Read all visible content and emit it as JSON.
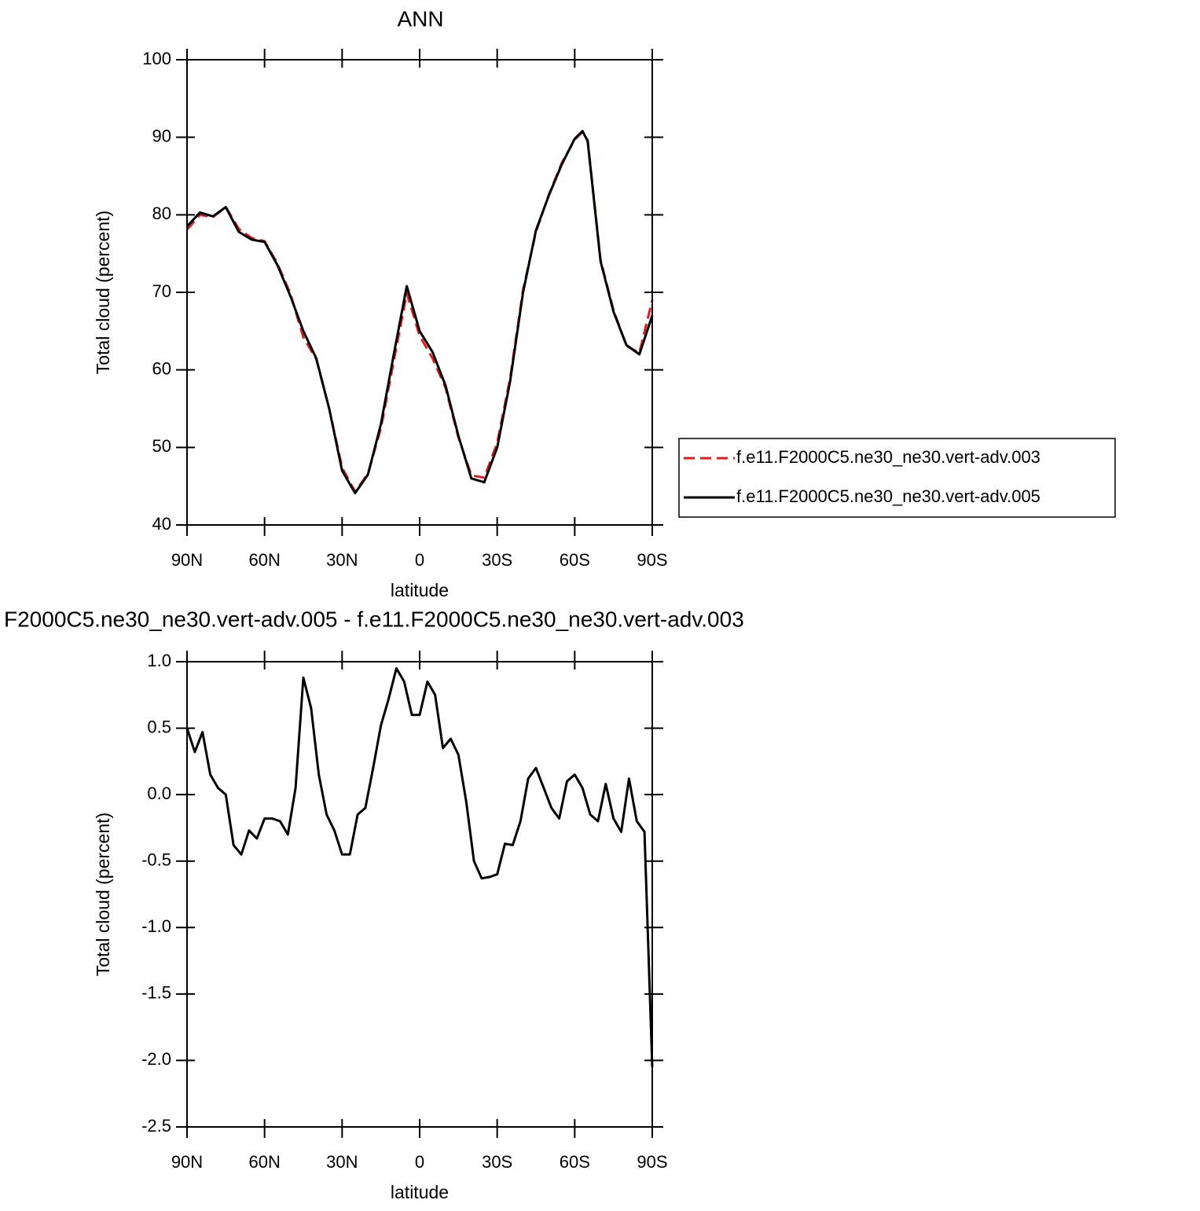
{
  "chart_data": [
    {
      "type": "line",
      "title": "ANN",
      "xlabel": "latitude",
      "ylabel": "Total cloud (percent)",
      "x": [
        90,
        85,
        80,
        75,
        70,
        65,
        60,
        55,
        50,
        45,
        40,
        35,
        30,
        25,
        20,
        15,
        10,
        5,
        0,
        -5,
        -10,
        -15,
        -20,
        -25,
        -30,
        -35,
        -40,
        -45,
        -50,
        -55,
        -60,
        -63,
        -65,
        -70,
        -75,
        -80,
        -85,
        -90
      ],
      "series": [
        {
          "name": "f.e11.F2000C5.ne30_ne30.vert-adv.003",
          "color": "#e41a1c",
          "line_style": "dashed",
          "values": [
            78.1,
            80.0,
            79.7,
            81.0,
            78.2,
            77.0,
            76.6,
            73.7,
            69.8,
            64.2,
            61.4,
            55.0,
            47.4,
            44.3,
            46.6,
            52.5,
            61.2,
            69.9,
            64.4,
            61.5,
            57.7,
            51.3,
            46.4,
            46.1,
            50.6,
            58.9,
            70.3,
            77.8,
            82.6,
            86.7,
            89.7,
            90.7,
            89.6,
            74.2,
            67.7,
            63.1,
            62.2,
            69.0
          ]
        },
        {
          "name": "f.e11.F2000C5.ne30_ne30.vert-adv.005",
          "color": "#000000",
          "line_style": "solid",
          "values": [
            78.5,
            80.3,
            79.8,
            81.0,
            77.8,
            76.8,
            76.5,
            73.5,
            69.5,
            65.0,
            61.5,
            55.0,
            47.0,
            44.1,
            46.5,
            53.0,
            62.0,
            70.8,
            65.0,
            62.3,
            58.0,
            51.5,
            46.0,
            45.5,
            50.0,
            58.5,
            70.0,
            78.0,
            82.5,
            86.5,
            89.8,
            90.8,
            89.5,
            74.0,
            67.5,
            63.2,
            62.0,
            67.0
          ]
        }
      ],
      "xlim": [
        90,
        -90
      ],
      "xticks": [
        {
          "value": 90,
          "label": "90N"
        },
        {
          "value": 60,
          "label": "60N"
        },
        {
          "value": 30,
          "label": "30N"
        },
        0,
        {
          "value": -30,
          "label": "30S"
        },
        {
          "value": -60,
          "label": "60S"
        },
        {
          "value": -90,
          "label": "90S"
        }
      ],
      "ylim": [
        40,
        100
      ],
      "yticks": [
        40,
        50,
        60,
        70,
        80,
        90,
        100
      ],
      "legend": "right"
    },
    {
      "type": "line",
      "title": "F2000C5.ne30_ne30.vert-adv.005 - f.e11.F2000C5.ne30_ne30.vert-adv.003",
      "xlabel": "latitude",
      "ylabel": "Total cloud (percent)",
      "x": [
        90,
        87,
        84,
        81,
        78,
        75,
        72,
        69,
        66,
        63,
        60,
        57,
        54,
        51,
        48,
        45,
        42,
        39,
        36,
        33,
        30,
        27,
        24,
        21,
        18,
        15,
        12,
        9,
        6,
        3,
        0,
        -3,
        -6,
        -9,
        -12,
        -15,
        -18,
        -21,
        -24,
        -27,
        -30,
        -33,
        -36,
        -39,
        -42,
        -45,
        -48,
        -51,
        -54,
        -57,
        -60,
        -63,
        -66,
        -69,
        -72,
        -75,
        -78,
        -81,
        -84,
        -87,
        -90
      ],
      "series": [
        {
          "name": null,
          "color": "#000000",
          "line_style": "solid",
          "values": [
            0.5,
            0.32,
            0.47,
            0.15,
            0.05,
            0.0,
            -0.38,
            -0.45,
            -0.27,
            -0.33,
            -0.18,
            -0.18,
            -0.2,
            -0.3,
            0.05,
            0.88,
            0.65,
            0.15,
            -0.15,
            -0.27,
            -0.45,
            -0.45,
            -0.15,
            -0.1,
            0.2,
            0.52,
            0.72,
            0.95,
            0.85,
            0.6,
            0.6,
            0.85,
            0.75,
            0.35,
            0.42,
            0.3,
            -0.05,
            -0.5,
            -0.63,
            -0.62,
            -0.6,
            -0.37,
            -0.38,
            -0.2,
            0.12,
            0.2,
            0.05,
            -0.1,
            -0.18,
            0.1,
            0.15,
            0.05,
            -0.15,
            -0.2,
            0.08,
            -0.18,
            -0.28,
            0.12,
            -0.2,
            -0.28,
            -2.05
          ]
        }
      ],
      "xlim": [
        90,
        -90
      ],
      "xticks": [
        {
          "value": 90,
          "label": "90N"
        },
        {
          "value": 60,
          "label": "60N"
        },
        {
          "value": 30,
          "label": "30N"
        },
        0,
        {
          "value": -30,
          "label": "30S"
        },
        {
          "value": -60,
          "label": "60S"
        },
        {
          "value": -90,
          "label": "90S"
        }
      ],
      "ylim": [
        -2.5,
        1.0
      ],
      "yticks": [
        -2.5,
        {
          "value": -2.0,
          "label": "-2.0"
        },
        -1.5,
        {
          "value": -1.0,
          "label": "-1.0"
        },
        -0.5,
        {
          "value": 0.0,
          "label": "0.0"
        },
        0.5,
        {
          "value": 1.0,
          "label": "1.0"
        }
      ]
    }
  ]
}
